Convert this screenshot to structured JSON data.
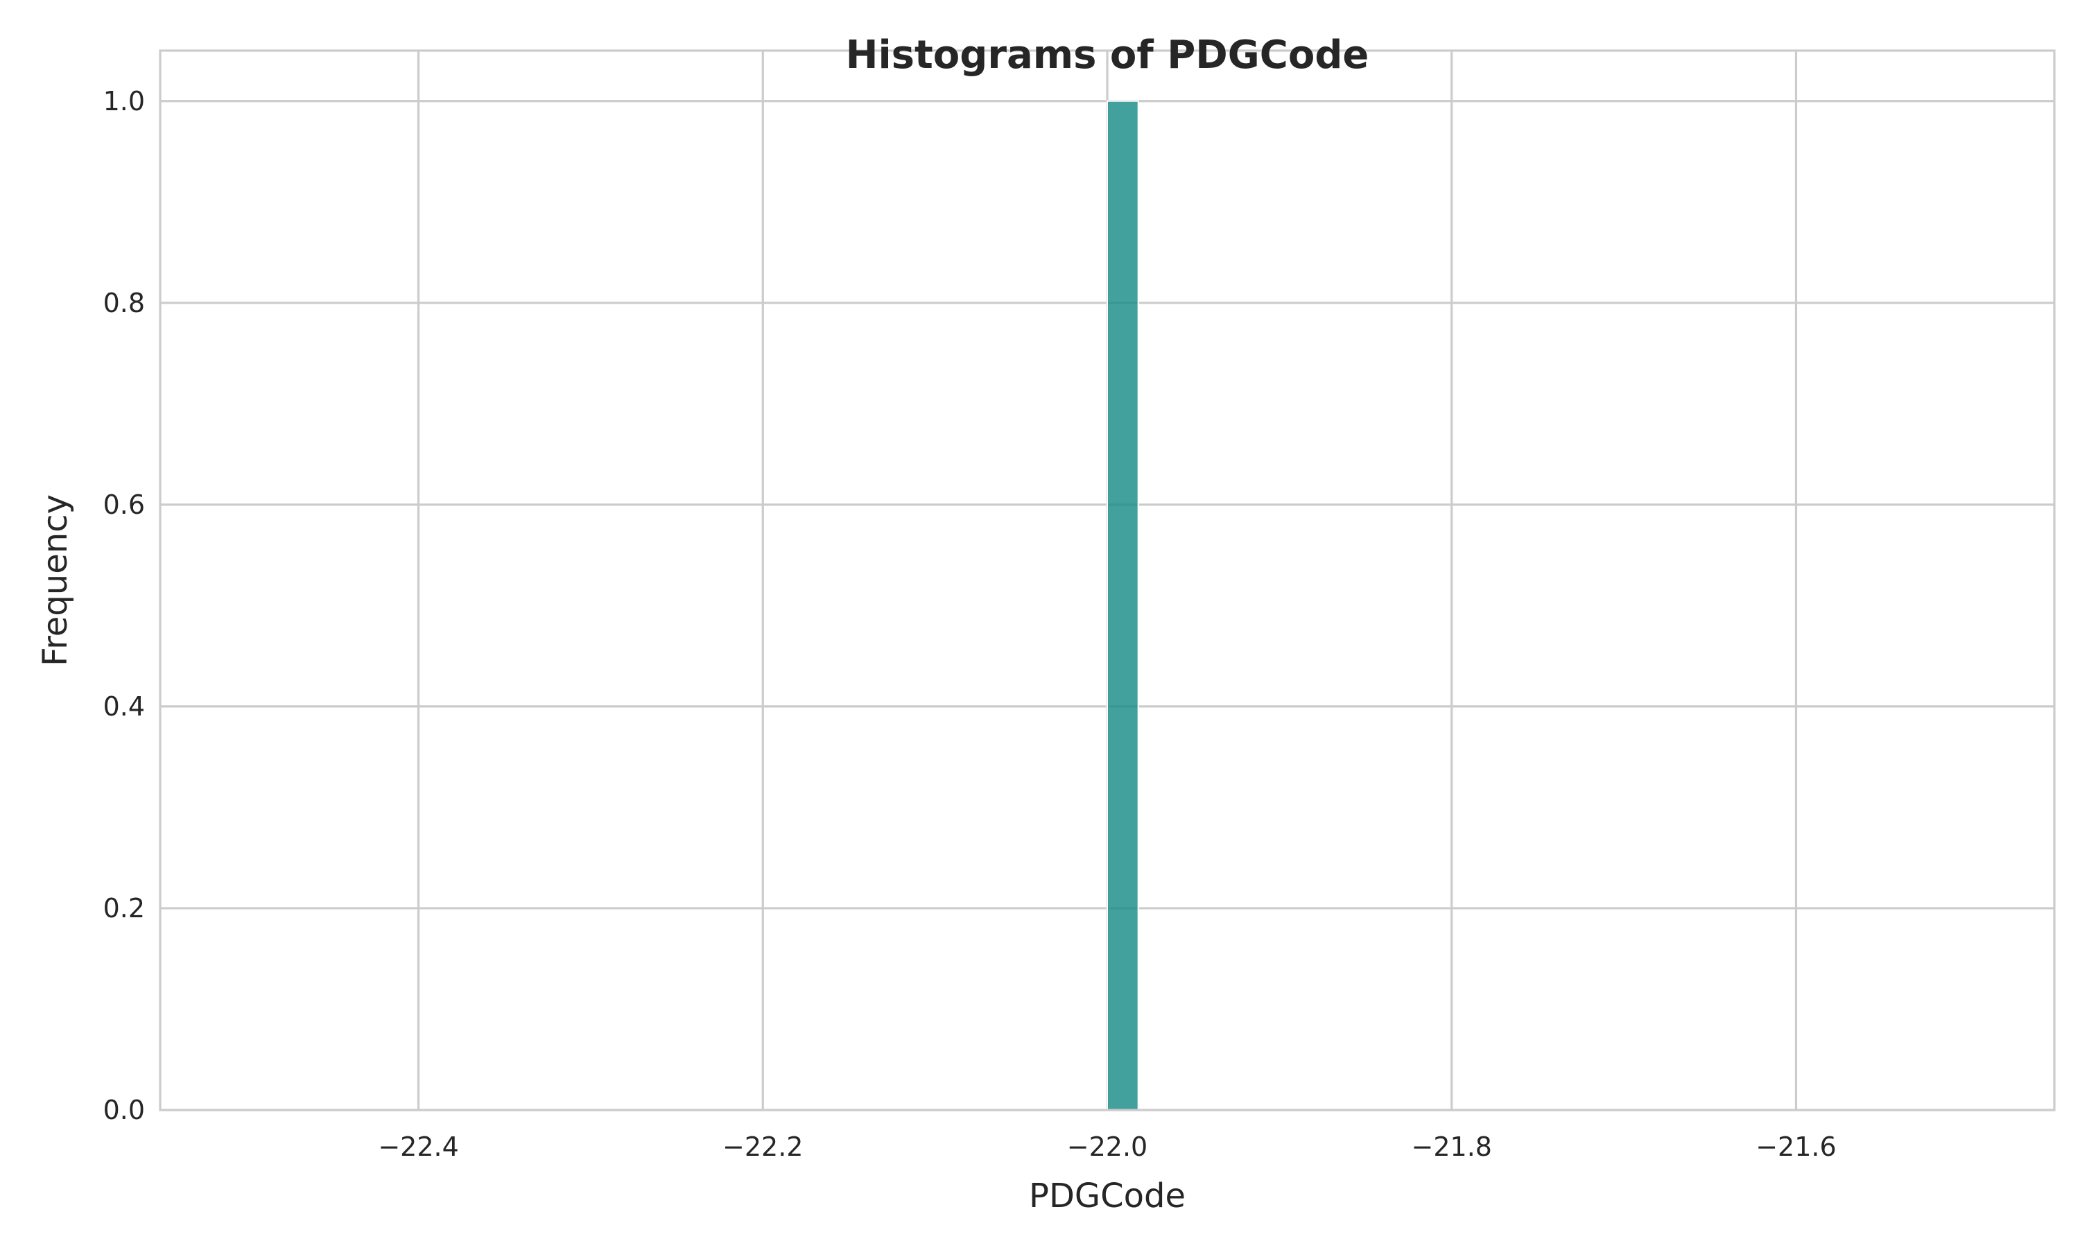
{
  "chart_data": {
    "type": "bar",
    "title": "Histograms of PDGCode",
    "xlabel": "PDGCode",
    "ylabel": "Frequency",
    "xlim": [
      -22.55,
      -21.45
    ],
    "ylim": [
      0,
      1.05
    ],
    "x_ticks": [
      -22.4,
      -22.2,
      -22.0,
      -21.8,
      -21.6
    ],
    "x_tick_labels": [
      "−22.4",
      "−22.2",
      "−22.0",
      "−21.8",
      "−21.6"
    ],
    "y_ticks": [
      0.0,
      0.2,
      0.4,
      0.6,
      0.8,
      1.0
    ],
    "y_tick_labels": [
      "0.0",
      "0.2",
      "0.4",
      "0.6",
      "0.8",
      "1.0"
    ],
    "grid": true,
    "bars": [
      {
        "x_start": -22.0,
        "x_end": -21.982,
        "value": 1.0
      }
    ],
    "colors": {
      "bar": "#1a8c88",
      "grid": "#cccccc",
      "text": "#262626"
    }
  }
}
